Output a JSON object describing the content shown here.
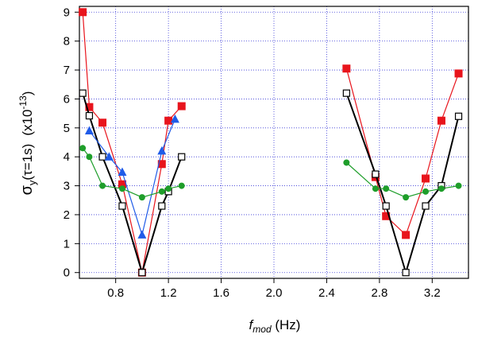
{
  "chart_data": {
    "type": "line",
    "xlim": [
      0.525,
      3.475
    ],
    "ylim": [
      -0.2,
      9.2
    ],
    "x_ticks": [
      0.8,
      1.2,
      1.6,
      2.0,
      2.4,
      2.8,
      3.2
    ],
    "y_ticks": [
      0,
      1,
      2,
      3,
      4,
      5,
      6,
      7,
      8,
      9
    ],
    "x_tick_labels": [
      "0.8",
      "1.2",
      "1.6",
      "2.0",
      "2.4",
      "2.8",
      "3.2"
    ],
    "y_tick_labels": [
      "0",
      "1",
      "2",
      "3",
      "4",
      "5",
      "6",
      "7",
      "8",
      "9"
    ],
    "xlabel": {
      "main": "f",
      "sub": "mod",
      "rest": " (Hz)"
    },
    "ylabel": {
      "sigma": "σ",
      "sub": "y",
      "arg": "(τ=1s)",
      "scale_open": "(x10",
      "exp": "-13",
      "scale_close": ")"
    },
    "grid": true,
    "series": [
      {
        "color": "#e8141c",
        "marker": "square-filled",
        "segments": [
          {
            "x": [
              0.55,
              0.6,
              0.7,
              0.85,
              1.0,
              1.15,
              1.2,
              1.3
            ],
            "y": [
              9.0,
              5.72,
              5.18,
              3.05,
              0.0,
              3.75,
              5.25,
              5.75
            ]
          },
          {
            "x": [
              2.55,
              2.77,
              2.85,
              3.0,
              3.15,
              3.27,
              3.4
            ],
            "y": [
              7.05,
              3.3,
              1.95,
              1.3,
              3.25,
              5.25,
              6.88
            ]
          }
        ]
      },
      {
        "color": "#000000",
        "marker": "square-open",
        "segments": [
          {
            "x": [
              0.55,
              0.6,
              0.7,
              0.85,
              1.0,
              1.15,
              1.2,
              1.3
            ],
            "y": [
              6.2,
              5.42,
              4.0,
              2.3,
              0.0,
              2.3,
              2.8,
              4.0
            ]
          },
          {
            "x": [
              2.55,
              2.77,
              2.85,
              3.0,
              3.15,
              3.27,
              3.4
            ],
            "y": [
              6.2,
              3.4,
              2.3,
              0.0,
              2.3,
              3.0,
              5.4
            ]
          }
        ]
      },
      {
        "color": "#1f5be8",
        "marker": "triangle-filled",
        "segments": [
          {
            "x": [
              0.6,
              0.75,
              0.85,
              1.0,
              1.15,
              1.25
            ],
            "y": [
              4.9,
              4.0,
              3.47,
              1.3,
              4.2,
              5.3
            ]
          }
        ]
      },
      {
        "color": "#1e9e2a",
        "marker": "circle-filled",
        "segments": [
          {
            "x": [
              0.55,
              0.6,
              0.7,
              0.85,
              1.0,
              1.15,
              1.2,
              1.3
            ],
            "y": [
              4.3,
              4.0,
              3.0,
              2.9,
              2.6,
              2.8,
              2.9,
              3.0
            ]
          },
          {
            "x": [
              2.55,
              2.77,
              2.85,
              3.0,
              3.15,
              3.27,
              3.4
            ],
            "y": [
              3.8,
              2.9,
              2.9,
              2.6,
              2.8,
              2.9,
              3.0
            ]
          }
        ]
      }
    ]
  }
}
